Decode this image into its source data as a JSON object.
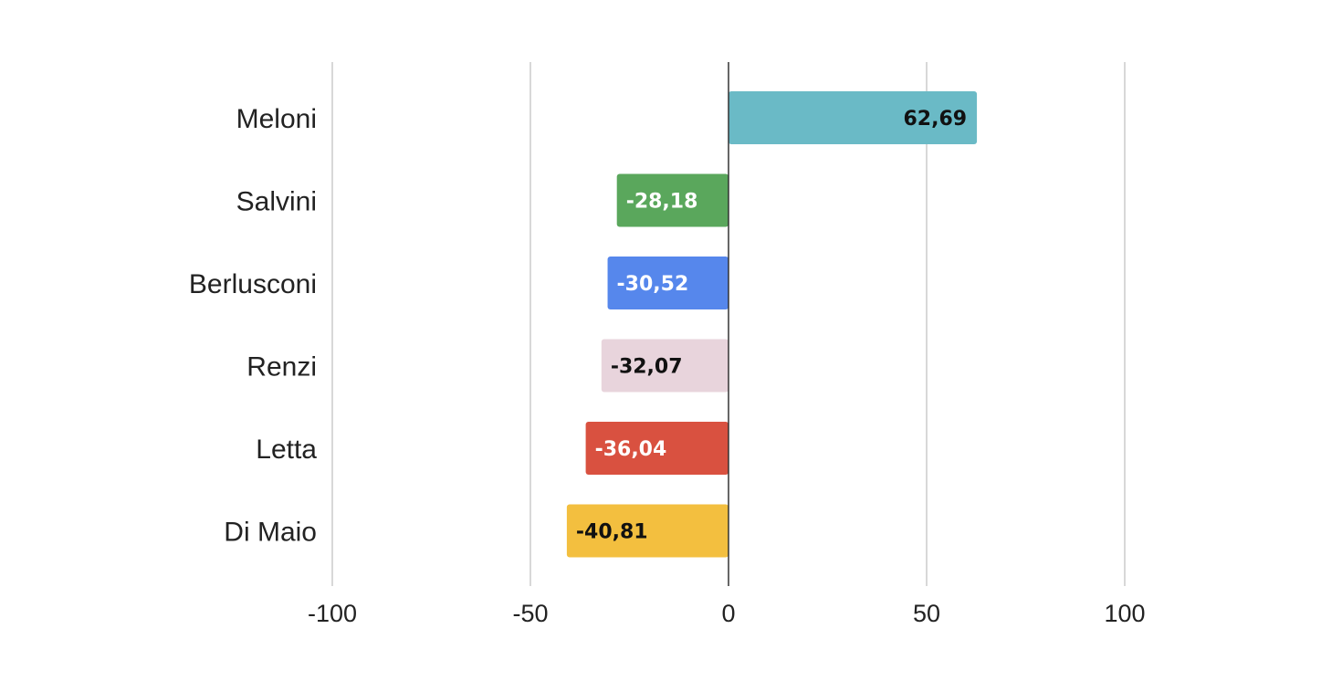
{
  "chart_data": {
    "type": "bar",
    "orientation": "horizontal",
    "title": "",
    "xlabel": "",
    "ylabel": "",
    "xlim": [
      -100,
      100
    ],
    "ticks": [
      -100,
      -50,
      0,
      50,
      100
    ],
    "tick_labels": [
      "-100",
      "-50",
      "0",
      "50",
      "100"
    ],
    "grid": true,
    "legend": "none",
    "bars": [
      {
        "category": "Meloni",
        "value": 62.69,
        "label": "62,69",
        "color": "#6abac6",
        "label_color": "#111111"
      },
      {
        "category": "Salvini",
        "value": -28.18,
        "label": "-28,18",
        "color": "#5aa75c",
        "label_color": "#ffffff"
      },
      {
        "category": "Berlusconi",
        "value": -30.52,
        "label": "-30,52",
        "color": "#5687ec",
        "label_color": "#ffffff"
      },
      {
        "category": "Renzi",
        "value": -32.07,
        "label": "-32,07",
        "color": "#e8d4dc",
        "label_color": "#111111"
      },
      {
        "category": "Letta",
        "value": -36.04,
        "label": "-36,04",
        "color": "#d95140",
        "label_color": "#ffffff"
      },
      {
        "category": "Di Maio",
        "value": -40.81,
        "label": "-40,81",
        "color": "#f3bf3f",
        "label_color": "#111111"
      }
    ]
  }
}
